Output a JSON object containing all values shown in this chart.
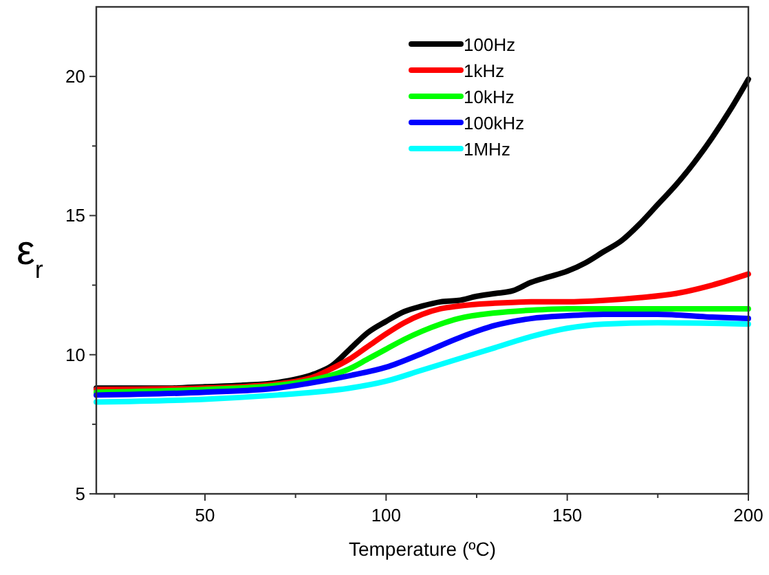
{
  "chart_data": {
    "type": "line",
    "xlabel": "Temperature (ºC)",
    "ylabel": "ε$_{r}$",
    "xlim": [
      20,
      200
    ],
    "ylim": [
      5,
      22.5
    ],
    "xticks": [
      {
        "value": 25,
        "label": null
      },
      50,
      {
        "value": 75,
        "label": null
      },
      100,
      {
        "value": 125,
        "label": null
      },
      150,
      {
        "value": 175,
        "label": null
      },
      200
    ],
    "yticks": [
      5,
      {
        "value": 7.5,
        "label": null
      },
      10,
      {
        "value": 12.5,
        "label": null
      },
      15,
      {
        "value": 17.5,
        "label": null
      },
      20
    ],
    "grid": false,
    "legend": "top right",
    "marker": "none",
    "line_style": "solid",
    "series": [
      {
        "name": "100Hz",
        "color": "#000000",
        "x": [
          20,
          30,
          40,
          50,
          60,
          70,
          80,
          85,
          90,
          95,
          100,
          105,
          110,
          115,
          120,
          125,
          130,
          135,
          140,
          145,
          150,
          155,
          160,
          165,
          170,
          175,
          180,
          185,
          190,
          195,
          200
        ],
        "values": [
          8.8,
          8.8,
          8.8,
          8.85,
          8.9,
          9.0,
          9.3,
          9.6,
          10.2,
          10.8,
          11.2,
          11.55,
          11.75,
          11.9,
          11.95,
          12.1,
          12.2,
          12.3,
          12.6,
          12.8,
          13.0,
          13.3,
          13.7,
          14.1,
          14.7,
          15.4,
          16.1,
          16.9,
          17.8,
          18.8,
          19.9
        ]
      },
      {
        "name": "1kHz",
        "color": "#ff0000",
        "x": [
          20,
          50,
          70,
          80,
          85,
          90,
          95,
          100,
          105,
          110,
          115,
          120,
          130,
          140,
          150,
          160,
          170,
          180,
          190,
          200
        ],
        "values": [
          8.75,
          8.8,
          8.95,
          9.2,
          9.5,
          9.85,
          10.3,
          10.75,
          11.15,
          11.45,
          11.65,
          11.75,
          11.85,
          11.9,
          11.9,
          11.95,
          12.05,
          12.2,
          12.5,
          12.9
        ]
      },
      {
        "name": "10kHz",
        "color": "#00ff00",
        "x": [
          20,
          50,
          70,
          80,
          90,
          95,
          100,
          105,
          110,
          115,
          120,
          130,
          140,
          150,
          175,
          200
        ],
        "values": [
          8.65,
          8.75,
          8.9,
          9.1,
          9.5,
          9.85,
          10.2,
          10.55,
          10.85,
          11.1,
          11.3,
          11.5,
          11.6,
          11.65,
          11.65,
          11.65
        ]
      },
      {
        "name": "100kHz",
        "color": "#0000ff",
        "x": [
          20,
          50,
          70,
          80,
          90,
          100,
          110,
          120,
          130,
          140,
          150,
          160,
          175,
          190,
          200
        ],
        "values": [
          8.55,
          8.65,
          8.8,
          9.0,
          9.25,
          9.55,
          10.05,
          10.6,
          11.05,
          11.3,
          11.4,
          11.45,
          11.45,
          11.35,
          11.3
        ]
      },
      {
        "name": "1MHz",
        "color": "#00ffff",
        "x": [
          20,
          50,
          70,
          80,
          90,
          100,
          110,
          120,
          130,
          140,
          150,
          160,
          175,
          200
        ],
        "values": [
          8.3,
          8.4,
          8.55,
          8.65,
          8.8,
          9.05,
          9.45,
          9.85,
          10.25,
          10.65,
          10.95,
          11.1,
          11.15,
          11.1
        ]
      }
    ]
  }
}
